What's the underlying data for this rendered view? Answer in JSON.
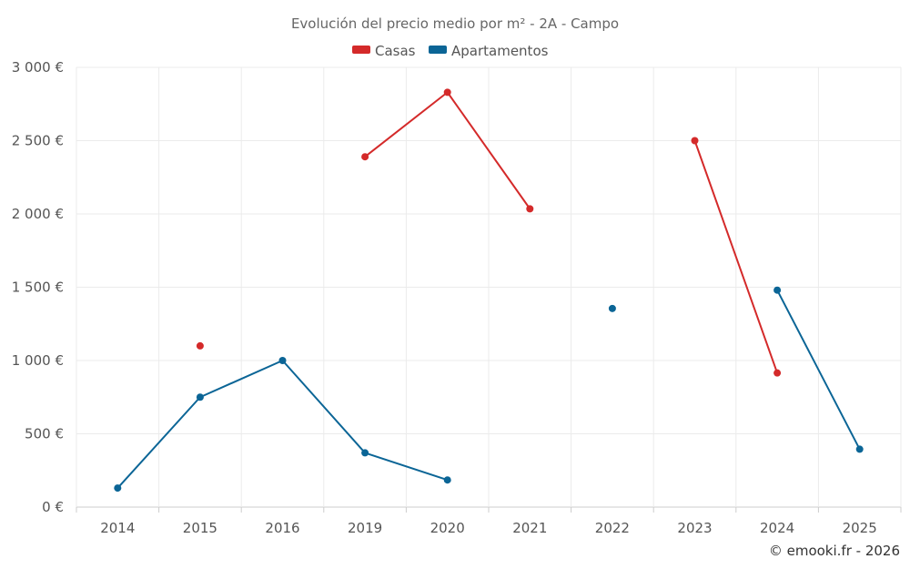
{
  "chart_data": {
    "type": "line",
    "title": "Evolución del precio medio por m² - 2A - Campo",
    "categories": [
      "2014",
      "2015",
      "2016",
      "2019",
      "2020",
      "2021",
      "2022",
      "2023",
      "2024",
      "2025"
    ],
    "y_ticks": [
      "0 €",
      "500 €",
      "1 000 €",
      "1 500 €",
      "2 000 €",
      "2 500 €",
      "3 000 €"
    ],
    "ylim": [
      0,
      3000
    ],
    "grid": true,
    "legend_position": "top-center",
    "series": [
      {
        "name": "Casas",
        "color": "#d42a2a",
        "values": [
          null,
          1100,
          null,
          2390,
          2830,
          2035,
          null,
          2500,
          915,
          null
        ]
      },
      {
        "name": "Apartamentos",
        "color": "#0b6596",
        "values": [
          130,
          750,
          1000,
          370,
          185,
          null,
          1355,
          null,
          1480,
          395
        ]
      }
    ],
    "credit": "© emooki.fr - 2026"
  }
}
